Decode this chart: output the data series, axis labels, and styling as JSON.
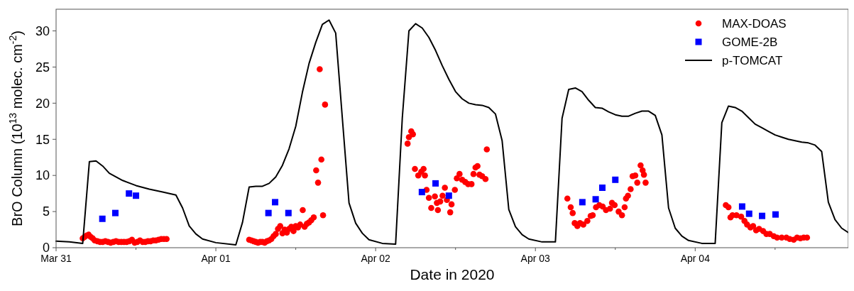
{
  "chart_data": {
    "type": "scatter",
    "xlabel": "Date in 2020",
    "ylabel": "BrO Column (10$^{13}$ molec. cm$^{-2}$)",
    "xlim": [
      "2020-03-31T00:00",
      "2020-04-04T23:00"
    ],
    "xticks": [
      {
        "value": "2020-03-31T00:00",
        "label": "Mar 31"
      },
      {
        "value": "2020-03-31T12:00",
        "label": null
      },
      {
        "value": "2020-04-01T00:00",
        "label": "Apr 01"
      },
      {
        "value": "2020-04-01T12:00",
        "label": null
      },
      {
        "value": "2020-04-02T00:00",
        "label": "Apr 02"
      },
      {
        "value": "2020-04-02T12:00",
        "label": null
      },
      {
        "value": "2020-04-03T00:00",
        "label": "Apr 03"
      },
      {
        "value": "2020-04-03T12:00",
        "label": null
      },
      {
        "value": "2020-04-04T00:00",
        "label": "Apr 04"
      },
      {
        "value": "2020-04-04T12:00",
        "label": null
      }
    ],
    "ylim": [
      0,
      33
    ],
    "yticks": [
      0,
      5,
      10,
      15,
      20,
      25,
      30
    ],
    "legend": "top right",
    "series": [
      {
        "name": "MAX-DOAS",
        "marker": "circle",
        "color": "#ff0000",
        "x": [
          "2020-03-31T04:00",
          "2020-03-31T04:18",
          "2020-03-31T04:36",
          "2020-03-31T04:54",
          "2020-03-31T05:12",
          "2020-03-31T05:30",
          "2020-03-31T05:48",
          "2020-03-31T06:12",
          "2020-03-31T06:36",
          "2020-03-31T07:00",
          "2020-03-31T07:24",
          "2020-03-31T07:48",
          "2020-03-31T08:12",
          "2020-03-31T08:36",
          "2020-03-31T09:00",
          "2020-03-31T09:24",
          "2020-03-31T09:48",
          "2020-03-31T10:12",
          "2020-03-31T10:36",
          "2020-03-31T11:00",
          "2020-03-31T11:24",
          "2020-03-31T11:48",
          "2020-03-31T12:12",
          "2020-03-31T12:36",
          "2020-03-31T13:00",
          "2020-03-31T13:24",
          "2020-03-31T13:48",
          "2020-03-31T14:12",
          "2020-03-31T14:36",
          "2020-03-31T15:00",
          "2020-03-31T15:24",
          "2020-03-31T15:48",
          "2020-03-31T16:12",
          "2020-03-31T16:36",
          "2020-04-01T05:00",
          "2020-04-01T05:20",
          "2020-04-01T05:40",
          "2020-04-01T06:00",
          "2020-04-01T06:20",
          "2020-04-01T06:40",
          "2020-04-01T07:00",
          "2020-04-01T07:20",
          "2020-04-01T07:40",
          "2020-04-01T08:00",
          "2020-04-01T08:20",
          "2020-04-01T08:40",
          "2020-04-01T09:00",
          "2020-04-01T09:20",
          "2020-04-01T09:40",
          "2020-04-01T10:00",
          "2020-04-01T10:20",
          "2020-04-01T10:40",
          "2020-04-01T11:00",
          "2020-04-01T11:20",
          "2020-04-01T11:40",
          "2020-04-01T12:00",
          "2020-04-01T12:20",
          "2020-04-01T12:40",
          "2020-04-01T13:03",
          "2020-04-01T13:20",
          "2020-04-01T13:40",
          "2020-04-01T14:00",
          "2020-04-01T14:20",
          "2020-04-01T14:42",
          "2020-04-01T15:04",
          "2020-04-01T15:21",
          "2020-04-01T15:36",
          "2020-04-01T15:51",
          "2020-04-01T16:06",
          "2020-04-01T16:24",
          "2020-04-02T04:48",
          "2020-04-02T05:00",
          "2020-04-02T05:21",
          "2020-04-02T05:36",
          "2020-04-02T05:54",
          "2020-04-02T06:24",
          "2020-04-02T06:51",
          "2020-04-02T07:12",
          "2020-04-02T07:24",
          "2020-04-02T07:39",
          "2020-04-02T08:00",
          "2020-04-02T08:21",
          "2020-04-02T08:54",
          "2020-04-02T09:12",
          "2020-04-02T09:21",
          "2020-04-02T09:42",
          "2020-04-02T10:03",
          "2020-04-02T10:24",
          "2020-04-02T10:42",
          "2020-04-02T11:12",
          "2020-04-02T11:24",
          "2020-04-02T11:54",
          "2020-04-02T12:12",
          "2020-04-02T12:36",
          "2020-04-02T13:00",
          "2020-04-02T13:27",
          "2020-04-02T13:54",
          "2020-04-02T14:24",
          "2020-04-02T14:42",
          "2020-04-02T15:00",
          "2020-04-02T15:18",
          "2020-04-02T15:36",
          "2020-04-02T16:00",
          "2020-04-02T16:30",
          "2020-04-02T16:42",
          "2020-04-03T04:48",
          "2020-04-03T05:18",
          "2020-04-03T05:36",
          "2020-04-03T05:54",
          "2020-04-03T06:18",
          "2020-04-03T06:42",
          "2020-04-03T07:12",
          "2020-04-03T07:48",
          "2020-04-03T08:18",
          "2020-04-03T08:36",
          "2020-04-03T09:06",
          "2020-04-03T09:36",
          "2020-04-03T10:06",
          "2020-04-03T10:36",
          "2020-04-03T11:12",
          "2020-04-03T11:30",
          "2020-04-03T11:54",
          "2020-04-03T12:30",
          "2020-04-03T13:00",
          "2020-04-03T13:24",
          "2020-04-03T13:36",
          "2020-04-03T13:54",
          "2020-04-03T14:18",
          "2020-04-03T14:36",
          "2020-04-03T15:00",
          "2020-04-03T15:18",
          "2020-04-03T15:48",
          "2020-04-03T16:06",
          "2020-04-03T16:18",
          "2020-04-03T16:33",
          "2020-04-04T04:36",
          "2020-04-04T05:00",
          "2020-04-04T05:18",
          "2020-04-04T05:36",
          "2020-04-04T06:12",
          "2020-04-04T06:54",
          "2020-04-04T07:24",
          "2020-04-04T07:48",
          "2020-04-04T08:18",
          "2020-04-04T08:42",
          "2020-04-04T09:09",
          "2020-04-04T09:36",
          "2020-04-04T10:12",
          "2020-04-04T10:42",
          "2020-04-04T11:12",
          "2020-04-04T11:48",
          "2020-04-04T12:18",
          "2020-04-04T13:00",
          "2020-04-04T13:42",
          "2020-04-04T14:12",
          "2020-04-04T14:48",
          "2020-04-04T15:18",
          "2020-04-04T15:48",
          "2020-04-04T16:18",
          "2020-04-04T16:48"
        ],
        "values": [
          1.3,
          1.5,
          1.7,
          1.8,
          1.5,
          1.3,
          1.0,
          0.9,
          0.8,
          0.8,
          0.9,
          0.8,
          0.7,
          0.8,
          0.9,
          0.8,
          0.8,
          0.8,
          0.8,
          0.9,
          1.1,
          0.7,
          0.8,
          1.0,
          0.8,
          0.8,
          0.9,
          0.9,
          1.0,
          1.0,
          1.1,
          1.2,
          1.2,
          1.2,
          1.1,
          1.0,
          0.9,
          0.8,
          0.7,
          0.8,
          0.8,
          0.7,
          0.9,
          1.0,
          1.2,
          1.6,
          1.9,
          2.6,
          3.0,
          2.0,
          2.5,
          2.1,
          2.6,
          2.9,
          2.3,
          3.0,
          2.8,
          3.2,
          5.2,
          2.9,
          3.3,
          3.5,
          3.8,
          4.2,
          10.7,
          9.0,
          24.7,
          12.2,
          4.5,
          19.8,
          14.4,
          15.3,
          16.1,
          15.7,
          10.9,
          10.0,
          10.5,
          10.9,
          10.0,
          8.0,
          6.9,
          5.5,
          7.1,
          6.2,
          5.2,
          6.4,
          7.2,
          8.3,
          6.6,
          4.9,
          6.0,
          8.0,
          9.6,
          10.2,
          9.4,
          9.1,
          8.8,
          8.8,
          10.2,
          11.1,
          11.3,
          10.1,
          9.9,
          9.5,
          13.6,
          6.8,
          5.6,
          4.8,
          3.4,
          3.0,
          3.4,
          3.2,
          3.7,
          4.4,
          4.5,
          5.6,
          5.9,
          5.7,
          5.2,
          5.4,
          6.2,
          5.9,
          5.0,
          4.5,
          5.6,
          6.8,
          7.2,
          8.1,
          9.9,
          10.0,
          9.0,
          11.4,
          10.7,
          10.1,
          9.0,
          5.9,
          5.6,
          4.2,
          4.5,
          4.5,
          4.3,
          3.7,
          3.2,
          2.8,
          3.0,
          2.4,
          2.6,
          2.3,
          1.9,
          1.9,
          1.6,
          1.4,
          1.4,
          1.4,
          1.2,
          1.1,
          1.4,
          1.3,
          1.4,
          1.4
        ]
      },
      {
        "name": "GOME-2B",
        "marker": "square",
        "color": "#0000ff",
        "x": [
          "2020-03-31T06:57",
          "2020-03-31T08:54",
          "2020-03-31T10:57",
          "2020-03-31T12:00",
          "2020-04-01T07:54",
          "2020-04-01T08:54",
          "2020-04-01T10:54",
          "2020-04-02T06:57",
          "2020-04-02T09:00",
          "2020-04-02T11:00",
          "2020-04-03T07:03",
          "2020-04-03T09:03",
          "2020-04-03T10:03",
          "2020-04-03T12:00",
          "2020-04-04T07:03",
          "2020-04-04T08:06",
          "2020-04-04T10:03",
          "2020-04-04T12:04"
        ],
        "values": [
          4.0,
          4.8,
          7.5,
          7.2,
          4.8,
          6.3,
          4.8,
          7.7,
          8.9,
          7.2,
          6.3,
          6.7,
          8.3,
          9.4,
          5.7,
          4.7,
          4.4,
          4.6
        ]
      },
      {
        "name": "p-TOMCAT",
        "type": "line",
        "line_style": "solid",
        "color": "#000000",
        "x": [
          "2020-03-31T00:00",
          "2020-03-31T02:00",
          "2020-03-31T04:00",
          "2020-03-31T05:00",
          "2020-03-31T06:00",
          "2020-03-31T07:00",
          "2020-03-31T08:00",
          "2020-03-31T10:00",
          "2020-03-31T12:00",
          "2020-03-31T14:00",
          "2020-03-31T16:00",
          "2020-03-31T18:00",
          "2020-03-31T19:00",
          "2020-03-31T20:00",
          "2020-03-31T21:00",
          "2020-03-31T22:00",
          "2020-04-01T00:00",
          "2020-04-01T03:00",
          "2020-04-01T04:00",
          "2020-04-01T05:00",
          "2020-04-01T06:00",
          "2020-04-01T07:00",
          "2020-04-01T08:00",
          "2020-04-01T09:00",
          "2020-04-01T10:00",
          "2020-04-01T11:00",
          "2020-04-01T12:00",
          "2020-04-01T13:00",
          "2020-04-01T14:00",
          "2020-04-01T15:00",
          "2020-04-01T16:00",
          "2020-04-01T17:00",
          "2020-04-01T18:00",
          "2020-04-01T19:00",
          "2020-04-01T20:00",
          "2020-04-01T21:00",
          "2020-04-01T22:00",
          "2020-04-01T23:00",
          "2020-04-02T01:00",
          "2020-04-02T03:00",
          "2020-04-02T04:00",
          "2020-04-02T05:00",
          "2020-04-02T06:00",
          "2020-04-02T07:00",
          "2020-04-02T08:00",
          "2020-04-02T09:00",
          "2020-04-02T10:00",
          "2020-04-02T11:00",
          "2020-04-02T12:00",
          "2020-04-02T13:00",
          "2020-04-02T14:00",
          "2020-04-02T15:00",
          "2020-04-02T16:00",
          "2020-04-02T17:00",
          "2020-04-02T18:00",
          "2020-04-02T19:00",
          "2020-04-02T20:00",
          "2020-04-02T21:00",
          "2020-04-02T22:00",
          "2020-04-02T23:00",
          "2020-04-03T01:00",
          "2020-04-03T03:00",
          "2020-04-03T04:00",
          "2020-04-03T05:00",
          "2020-04-03T06:00",
          "2020-04-03T07:00",
          "2020-04-03T08:00",
          "2020-04-03T09:00",
          "2020-04-03T10:00",
          "2020-04-03T11:00",
          "2020-04-03T12:00",
          "2020-04-03T13:00",
          "2020-04-03T14:00",
          "2020-04-03T15:00",
          "2020-04-03T16:00",
          "2020-04-03T17:00",
          "2020-04-03T18:00",
          "2020-04-03T19:00",
          "2020-04-03T20:00",
          "2020-04-03T21:00",
          "2020-04-03T22:00",
          "2020-04-03T23:00",
          "2020-04-04T01:00",
          "2020-04-04T03:00",
          "2020-04-04T04:00",
          "2020-04-04T05:00",
          "2020-04-04T06:00",
          "2020-04-04T07:00",
          "2020-04-04T08:00",
          "2020-04-04T09:00",
          "2020-04-04T10:00",
          "2020-04-04T11:00",
          "2020-04-04T12:00",
          "2020-04-04T13:00",
          "2020-04-04T14:00",
          "2020-04-04T15:00",
          "2020-04-04T16:00",
          "2020-04-04T17:00",
          "2020-04-04T18:00",
          "2020-04-04T19:00",
          "2020-04-04T20:00",
          "2020-04-04T21:00",
          "2020-04-04T22:00",
          "2020-04-04T23:00"
        ],
        "values": [
          0.9,
          0.8,
          0.6,
          11.9,
          12.0,
          11.3,
          10.3,
          9.3,
          8.6,
          8.1,
          7.7,
          7.3,
          5.5,
          3.0,
          1.9,
          1.2,
          0.7,
          0.4,
          3.5,
          8.4,
          8.5,
          8.5,
          8.9,
          9.8,
          11.4,
          13.7,
          16.8,
          21.5,
          25.5,
          28.4,
          30.9,
          31.5,
          29.7,
          17.9,
          6.2,
          3.4,
          2.0,
          1.1,
          0.6,
          0.5,
          17.9,
          30.0,
          31.0,
          30.4,
          29.1,
          27.3,
          25.2,
          23.3,
          21.6,
          20.6,
          20.0,
          19.8,
          19.7,
          19.4,
          18.5,
          14.8,
          5.3,
          2.9,
          1.8,
          1.2,
          0.8,
          0.8,
          17.9,
          21.9,
          22.1,
          21.6,
          20.4,
          19.4,
          19.3,
          18.8,
          18.4,
          18.2,
          18.2,
          18.6,
          18.9,
          18.9,
          18.3,
          15.6,
          5.5,
          2.7,
          1.6,
          1.0,
          0.6,
          0.6,
          17.3,
          19.6,
          19.4,
          18.9,
          18.0,
          17.1,
          16.6,
          16.1,
          15.6,
          15.3,
          15.0,
          14.8,
          14.6,
          14.5,
          14.2,
          13.3,
          6.3,
          3.9,
          2.7,
          2.1
        ]
      }
    ]
  }
}
